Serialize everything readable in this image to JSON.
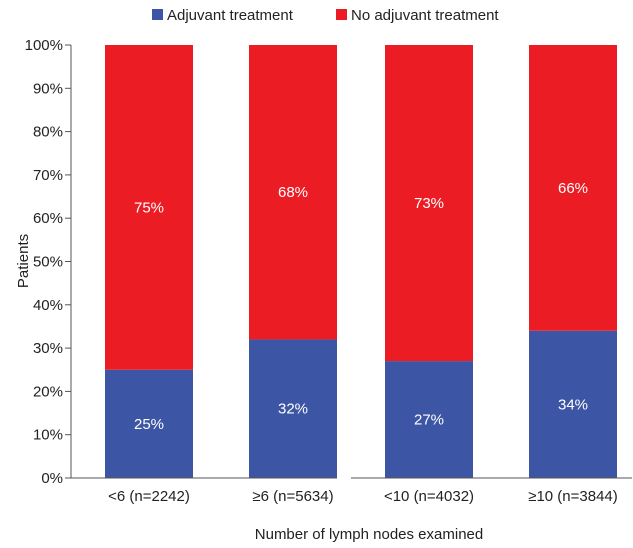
{
  "chart_data": {
    "type": "bar",
    "stacked": true,
    "normalized_percent": true,
    "categories": [
      "<6 (n=2242)",
      "≥6 (n=5634)",
      "<10 (n=4032)",
      "≥10 (n=3844)"
    ],
    "series": [
      {
        "name": "Adjuvant treatment",
        "values": [
          25,
          32,
          27,
          34
        ],
        "labels": [
          "25%",
          "32%",
          "27%",
          "34%"
        ],
        "color": "#3c55a4"
      },
      {
        "name": "No adjuvant treatment",
        "values": [
          75,
          68,
          73,
          66
        ],
        "labels": [
          "75%",
          "68%",
          "73%",
          "66%"
        ],
        "color": "#ec1c24"
      }
    ],
    "xlabel": "Number of lymph nodes examined",
    "ylabel": "Patients",
    "ylim": [
      0,
      100
    ],
    "yticks": [
      0,
      10,
      20,
      30,
      40,
      50,
      60,
      70,
      80,
      90,
      100
    ],
    "ytick_labels": [
      "0%",
      "10%",
      "20%",
      "30%",
      "40%",
      "50%",
      "60%",
      "70%",
      "80%",
      "90%",
      "100%"
    ],
    "grid": false,
    "legend_position": "top",
    "groups": [
      [
        0,
        1
      ],
      [
        2,
        3
      ]
    ]
  }
}
